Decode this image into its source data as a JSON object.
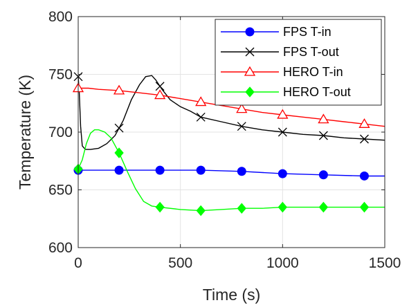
{
  "chart_data": {
    "type": "line",
    "title": "",
    "xlabel": "Time (s)",
    "ylabel": "Temperature (K)",
    "xlim": [
      0,
      1500
    ],
    "ylim": [
      600,
      800
    ],
    "xticks": [
      0,
      500,
      1000,
      1500
    ],
    "yticks": [
      600,
      650,
      700,
      750,
      800
    ],
    "grid": true,
    "legend_position": "top-right",
    "series": [
      {
        "name": "FPS T-in",
        "color": "#0000ff",
        "marker": "circle-filled",
        "x": [
          0,
          200,
          400,
          600,
          800,
          1000,
          1200,
          1400,
          1500
        ],
        "y": [
          667,
          667,
          667,
          667,
          666,
          664,
          663,
          662,
          662
        ],
        "marker_x": [
          0,
          200,
          400,
          600,
          800,
          1000,
          1200,
          1400
        ]
      },
      {
        "name": "FPS T-out",
        "color": "#000000",
        "marker": "x",
        "x": [
          0,
          5,
          12,
          20,
          35,
          60,
          100,
          140,
          180,
          220,
          260,
          300,
          330,
          360,
          380,
          410,
          450,
          500,
          550,
          600,
          700,
          800,
          900,
          1000,
          1100,
          1200,
          1300,
          1400,
          1500
        ],
        "y": [
          748,
          735,
          705,
          688,
          685,
          685,
          686,
          690,
          697,
          710,
          728,
          741,
          748,
          749,
          745,
          737,
          728,
          722,
          718,
          713,
          709,
          705,
          702,
          700,
          698,
          697,
          695,
          694,
          693
        ],
        "marker_x": [
          0,
          200,
          400,
          600,
          800,
          1000,
          1200,
          1400
        ]
      },
      {
        "name": "HERO T-in",
        "color": "#ff0000",
        "marker": "triangle-open",
        "x": [
          0,
          50,
          100,
          200,
          300,
          400,
          500,
          600,
          700,
          800,
          900,
          1000,
          1100,
          1200,
          1300,
          1400,
          1500
        ],
        "y": [
          738,
          738,
          737,
          736,
          734,
          732,
          729,
          726,
          723,
          720,
          717,
          715,
          713,
          711,
          709,
          707,
          705
        ],
        "marker_x": [
          0,
          200,
          400,
          600,
          800,
          1000,
          1200,
          1400
        ]
      },
      {
        "name": "HERO T-out",
        "color": "#00ff00",
        "marker": "diamond-filled",
        "x": [
          0,
          20,
          40,
          60,
          80,
          100,
          130,
          160,
          200,
          240,
          280,
          320,
          360,
          400,
          500,
          600,
          700,
          800,
          900,
          1000,
          1100,
          1200,
          1300,
          1400,
          1500
        ],
        "y": [
          668,
          676,
          690,
          699,
          702,
          702,
          700,
          695,
          682,
          666,
          651,
          640,
          636,
          635,
          633,
          632,
          633,
          634,
          634,
          635,
          635,
          635,
          635,
          635,
          635
        ],
        "marker_x": [
          0,
          200,
          400,
          600,
          800,
          1000,
          1200,
          1400
        ]
      }
    ]
  }
}
